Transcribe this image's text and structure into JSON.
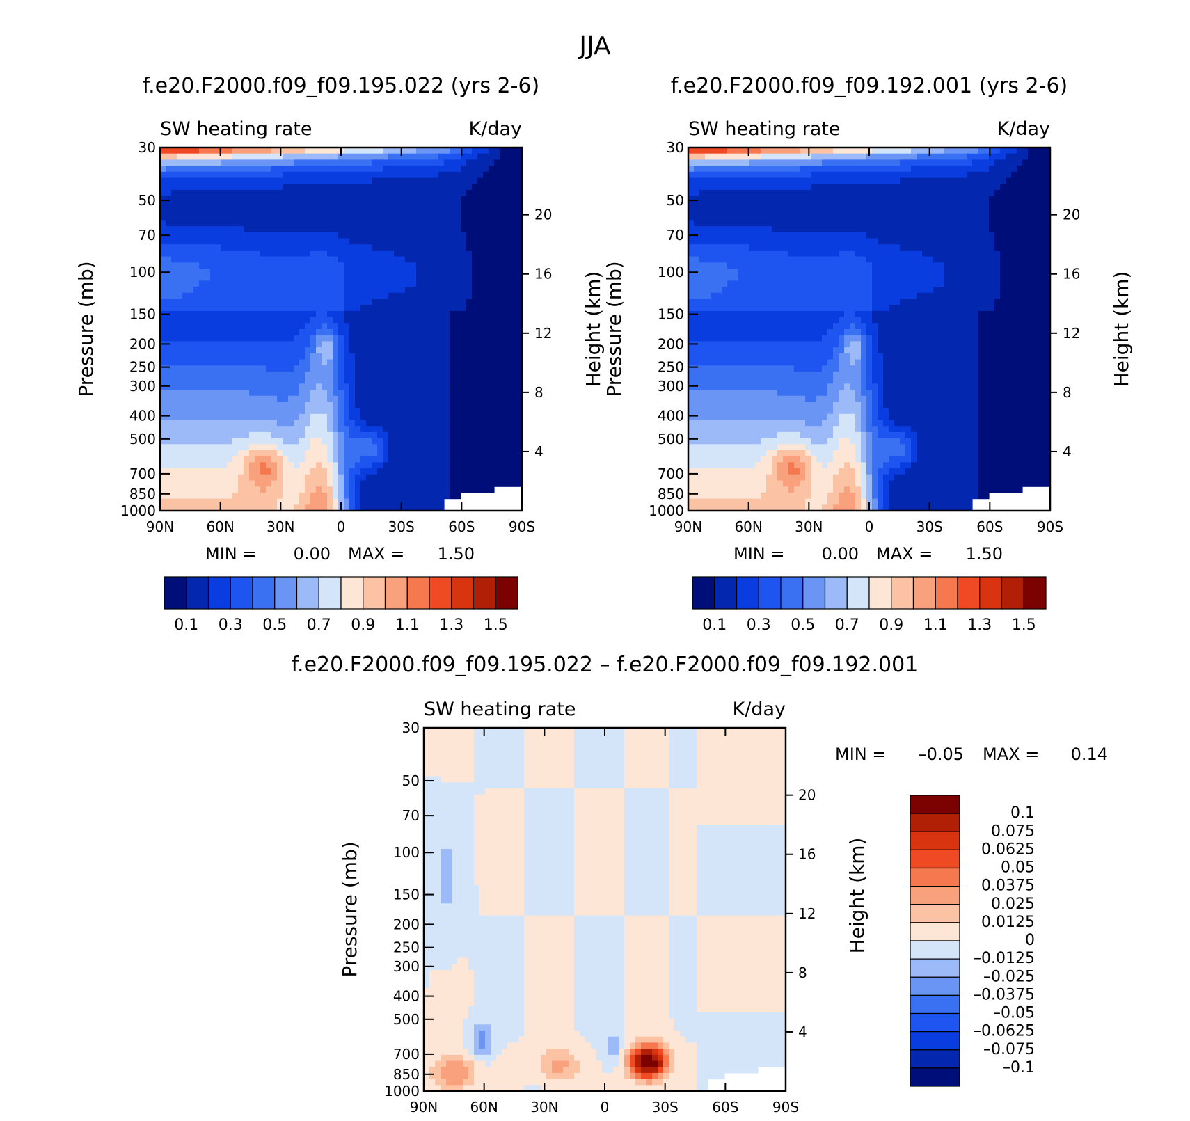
{
  "figure_title": "JJA",
  "chart_data": [
    {
      "type": "contour",
      "title": "f.e20.F2000.f09_f09.195.022 (yrs 2-6)",
      "variable": "SW heating rate",
      "units": "K/day",
      "xlabel": "",
      "ylabel": "Pressure (mb)",
      "ylabel_right": "Height (km)",
      "x_ticks": [
        "90N",
        "60N",
        "30N",
        "0",
        "30S",
        "60S",
        "90S"
      ],
      "y_ticks": [
        "30",
        "50",
        "70",
        "100",
        "150",
        "200",
        "250",
        "300",
        "400",
        "500",
        "700",
        "850",
        "1000"
      ],
      "height_ticks": [
        "20",
        "16",
        "12",
        "8",
        "4"
      ],
      "y_scale": "log",
      "min_label": "MIN =",
      "min": "0.00",
      "max_label": "MAX =",
      "max": "1.50",
      "colorbar_labels": [
        "0.1",
        "0.3",
        "0.5",
        "0.7",
        "0.9",
        "1.1",
        "1.3",
        "1.5"
      ],
      "colors": [
        "#000e7a",
        "#0427b0",
        "#0a3de0",
        "#1e55f0",
        "#3a70f2",
        "#6a95f5",
        "#9dbaf8",
        "#d4e5fa",
        "#fde6d6",
        "#fbc3a4",
        "#f9a07c",
        "#f5784e",
        "#f04a25",
        "#d83410",
        "#b21f07",
        "#7c0202"
      ]
    },
    {
      "type": "contour",
      "title": "f.e20.F2000.f09_f09.192.001 (yrs 2-6)",
      "variable": "SW heating rate",
      "units": "K/day",
      "xlabel": "",
      "ylabel": "Pressure (mb)",
      "ylabel_right": "Height (km)",
      "x_ticks": [
        "90N",
        "60N",
        "30N",
        "0",
        "30S",
        "60S",
        "90S"
      ],
      "y_ticks": [
        "30",
        "50",
        "70",
        "100",
        "150",
        "200",
        "250",
        "300",
        "400",
        "500",
        "700",
        "850",
        "1000"
      ],
      "height_ticks": [
        "20",
        "16",
        "12",
        "8",
        "4"
      ],
      "y_scale": "log",
      "min_label": "MIN =",
      "min": "0.00",
      "max_label": "MAX =",
      "max": "1.50",
      "colorbar_labels": [
        "0.1",
        "0.3",
        "0.5",
        "0.7",
        "0.9",
        "1.1",
        "1.3",
        "1.5"
      ],
      "colors": [
        "#000e7a",
        "#0427b0",
        "#0a3de0",
        "#1e55f0",
        "#3a70f2",
        "#6a95f5",
        "#9dbaf8",
        "#d4e5fa",
        "#fde6d6",
        "#fbc3a4",
        "#f9a07c",
        "#f5784e",
        "#f04a25",
        "#d83410",
        "#b21f07",
        "#7c0202"
      ]
    },
    {
      "type": "contour",
      "title": "f.e20.F2000.f09_f09.195.022 – f.e20.F2000.f09_f09.192.001",
      "variable": "SW heating rate",
      "units": "K/day",
      "xlabel": "",
      "ylabel": "Pressure (mb)",
      "ylabel_right": "Height (km)",
      "x_ticks": [
        "90N",
        "60N",
        "30N",
        "0",
        "30S",
        "60S",
        "90S"
      ],
      "y_ticks": [
        "30",
        "50",
        "70",
        "100",
        "150",
        "200",
        "250",
        "300",
        "400",
        "500",
        "700",
        "850",
        "1000"
      ],
      "height_ticks": [
        "20",
        "16",
        "12",
        "8",
        "4"
      ],
      "y_scale": "log",
      "min_label": "MIN =",
      "min": "–0.05",
      "max_label": "MAX =",
      "max": "0.14",
      "colorbar_labels": [
        "0.1",
        "0.075",
        "0.0625",
        "0.05",
        "0.0375",
        "0.025",
        "0.0125",
        "0",
        "–0.0125",
        "–0.025",
        "–0.0375",
        "–0.05",
        "–0.0625",
        "–0.075",
        "–0.1"
      ],
      "colors": [
        "#7c0202",
        "#b21f07",
        "#d83410",
        "#f04a25",
        "#f5784e",
        "#f9a07c",
        "#fbc3a4",
        "#fde6d6",
        "#d4e5fa",
        "#9dbaf8",
        "#6a95f5",
        "#3a70f2",
        "#1e55f0",
        "#0a3de0",
        "#0427b0",
        "#000e7a"
      ]
    }
  ]
}
